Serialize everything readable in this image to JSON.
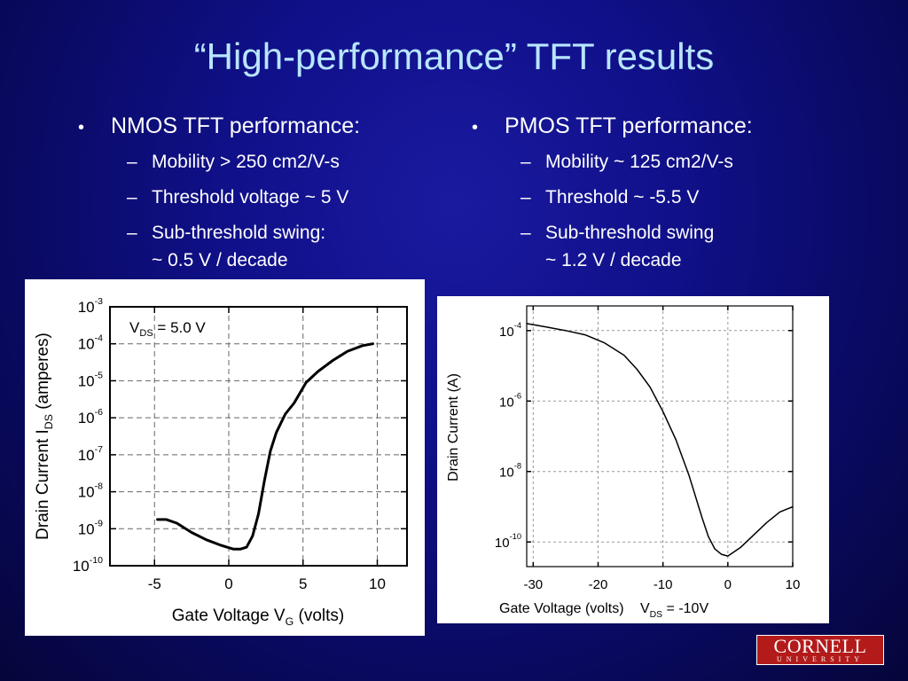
{
  "slide": {
    "title": "“High-performance” TFT results",
    "left_column": {
      "heading": "NMOS TFT performance:",
      "items": [
        "Mobility > 250 cm2/V-s",
        "Threshold voltage ~ 5 V",
        "Sub-threshold swing:\n~ 0.5 V / decade"
      ]
    },
    "right_column": {
      "heading": "PMOS TFT performance:",
      "items": [
        "Mobility ~ 125 cm2/V-s",
        "Threshold ~ -5.5 V",
        "Sub-threshold swing\n~ 1.2 V / decade"
      ]
    },
    "bullet_glyph": "•",
    "dash_glyph": "–",
    "logo": {
      "text": "CORNELL",
      "subtext": "UNIVERSITY"
    },
    "colors": {
      "title": "#b8e6ff",
      "background": "#10108a",
      "logo": "#b31b1b"
    }
  },
  "chart_data": [
    {
      "type": "line",
      "xlabel": "Gate Voltage V",
      "xlabel_sub": "G",
      "xlabel_suffix": " (volts)",
      "ylabel": "Drain Current I",
      "ylabel_sub": "DS",
      "ylabel_suffix": " (amperes)",
      "annotation": {
        "text": "V",
        "sub": "DS",
        "suffix": " = 5.0 V"
      },
      "xlim": [
        -8,
        12
      ],
      "ylim_log10": [
        -10,
        -3
      ],
      "y_scale": "log",
      "grid": true,
      "xticks": [
        -5,
        0,
        5,
        10
      ],
      "xtick_labels": [
        "-5",
        "0",
        "5",
        "10"
      ],
      "yticks_exponent": [
        -3,
        -4,
        -5,
        -6,
        -7,
        -8,
        -9,
        -10
      ],
      "series": [
        {
          "x": [
            -4.8,
            -4.2,
            -3.5,
            -2.5,
            -1.5,
            -0.5,
            0.3,
            0.8,
            1.2,
            1.6,
            2.0,
            2.4,
            2.8,
            3.2,
            3.8,
            4.4,
            5.2,
            6.0,
            7.0,
            8.0,
            9.0,
            9.7
          ],
          "y_log10": [
            -8.75,
            -8.75,
            -8.85,
            -9.1,
            -9.3,
            -9.45,
            -9.55,
            -9.55,
            -9.5,
            -9.2,
            -8.6,
            -7.7,
            -6.9,
            -6.4,
            -5.9,
            -5.6,
            -5.05,
            -4.75,
            -4.45,
            -4.2,
            -4.05,
            -4.0
          ]
        }
      ]
    },
    {
      "type": "line",
      "xlabel": "Gate Voltage (volts)",
      "annotation": {
        "text": "V",
        "sub": "DS",
        "suffix": " = -10V"
      },
      "ylabel": "Drain Current (A)",
      "xlim": [
        -31,
        10
      ],
      "ylim_log10": [
        -10.7,
        -3.3
      ],
      "y_scale": "log",
      "grid": true,
      "xticks": [
        -30,
        -20,
        -10,
        0,
        10
      ],
      "xtick_labels": [
        "-30",
        "-20",
        "-10",
        "0",
        "10"
      ],
      "yticks_exponent": [
        -4,
        -6,
        -8,
        -10
      ],
      "series": [
        {
          "x": [
            -31,
            -28,
            -25,
            -22,
            -19,
            -16,
            -14,
            -12,
            -10,
            -8,
            -6,
            -4,
            -3,
            -2,
            -1,
            0,
            2,
            4,
            6,
            8,
            10
          ],
          "y_log10": [
            -3.8,
            -3.9,
            -4.0,
            -4.12,
            -4.35,
            -4.7,
            -5.1,
            -5.6,
            -6.3,
            -7.1,
            -8.1,
            -9.3,
            -9.85,
            -10.2,
            -10.35,
            -10.4,
            -10.15,
            -9.8,
            -9.45,
            -9.15,
            -9.0
          ]
        }
      ]
    }
  ]
}
